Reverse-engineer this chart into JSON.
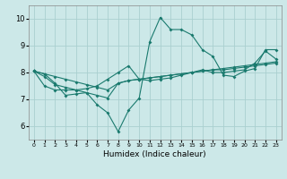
{
  "title": "",
  "xlabel": "Humidex (Indice chaleur)",
  "bg_color": "#cce8e8",
  "grid_color": "#aacfcf",
  "line_color": "#1a7a6e",
  "xlim": [
    -0.5,
    23.5
  ],
  "ylim": [
    5.5,
    10.5
  ],
  "yticks": [
    6,
    7,
    8,
    9,
    10
  ],
  "xtick_labels": [
    "0",
    "1",
    "2",
    "3",
    "4",
    "5",
    "6",
    "7",
    "8",
    "9",
    "10",
    "11",
    "12",
    "13",
    "14",
    "15",
    "16",
    "17",
    "18",
    "19",
    "20",
    "21",
    "22",
    "23"
  ],
  "series": [
    [
      8.05,
      7.95,
      7.6,
      7.15,
      7.2,
      7.25,
      6.8,
      6.5,
      5.8,
      6.6,
      7.05,
      9.15,
      10.05,
      9.6,
      9.6,
      9.4,
      8.85,
      8.6,
      7.9,
      7.85,
      8.05,
      8.15,
      8.85,
      8.85
    ],
    [
      8.05,
      7.85,
      7.55,
      7.45,
      7.35,
      7.25,
      7.15,
      7.05,
      7.6,
      7.7,
      7.75,
      7.8,
      7.85,
      7.9,
      7.95,
      8.0,
      8.05,
      8.1,
      8.1,
      8.15,
      8.2,
      8.25,
      8.3,
      8.35
    ],
    [
      8.05,
      7.5,
      7.35,
      7.35,
      7.35,
      7.4,
      7.5,
      7.75,
      8.0,
      8.25,
      7.75,
      7.7,
      7.75,
      7.8,
      7.9,
      8.0,
      8.1,
      8.0,
      8.0,
      8.05,
      8.1,
      8.35,
      8.8,
      8.5
    ],
    [
      8.05,
      7.95,
      7.85,
      7.75,
      7.65,
      7.55,
      7.45,
      7.35,
      7.6,
      7.7,
      7.75,
      7.8,
      7.85,
      7.9,
      7.95,
      8.0,
      8.05,
      8.1,
      8.15,
      8.2,
      8.25,
      8.3,
      8.35,
      8.4
    ]
  ]
}
